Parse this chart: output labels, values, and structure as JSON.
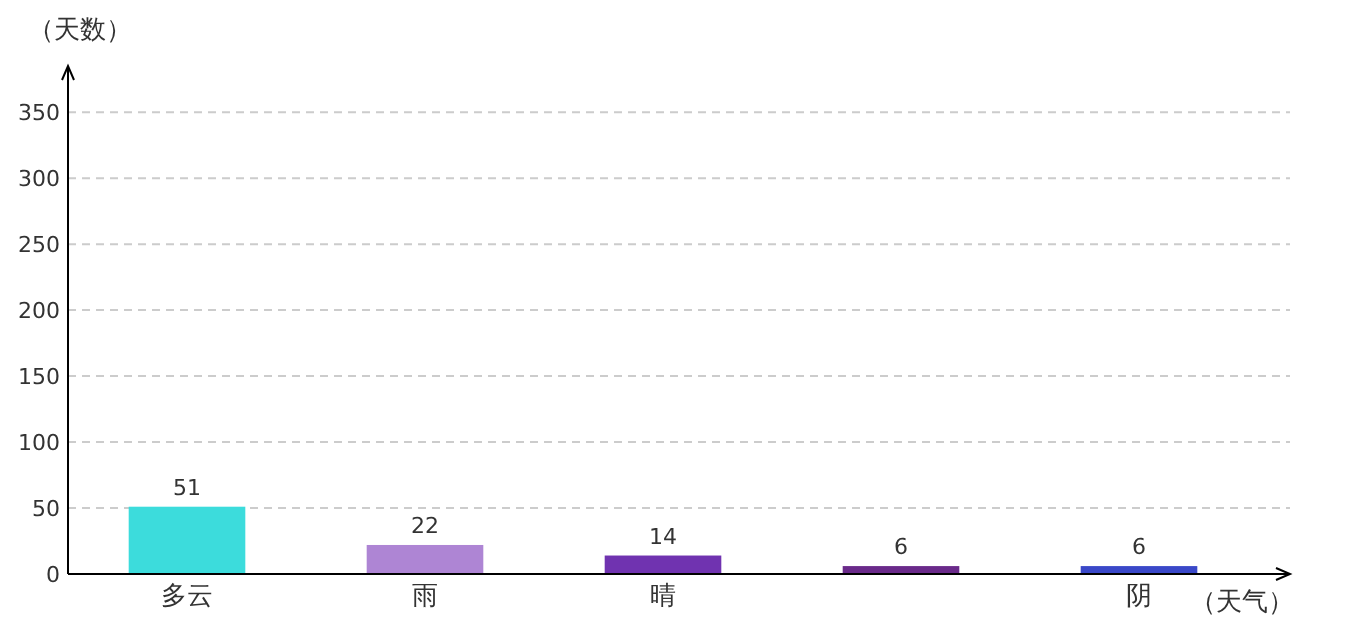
{
  "chart_data": {
    "type": "bar",
    "ylabel": "（天数）",
    "xlabel": "（天气）",
    "categories": [
      "多云",
      "雨",
      "晴",
      null,
      "阴"
    ],
    "values": [
      51,
      22,
      14,
      6,
      6
    ],
    "colors": [
      "#3cdcdc",
      "#ae85d4",
      "#7033b0",
      "#6a2a8a",
      "#3a48c8"
    ],
    "ylim": [
      0,
      385
    ],
    "yticks": [
      0,
      50,
      100,
      150,
      200,
      250,
      300,
      350
    ],
    "grid": "y",
    "data_labels": true
  }
}
